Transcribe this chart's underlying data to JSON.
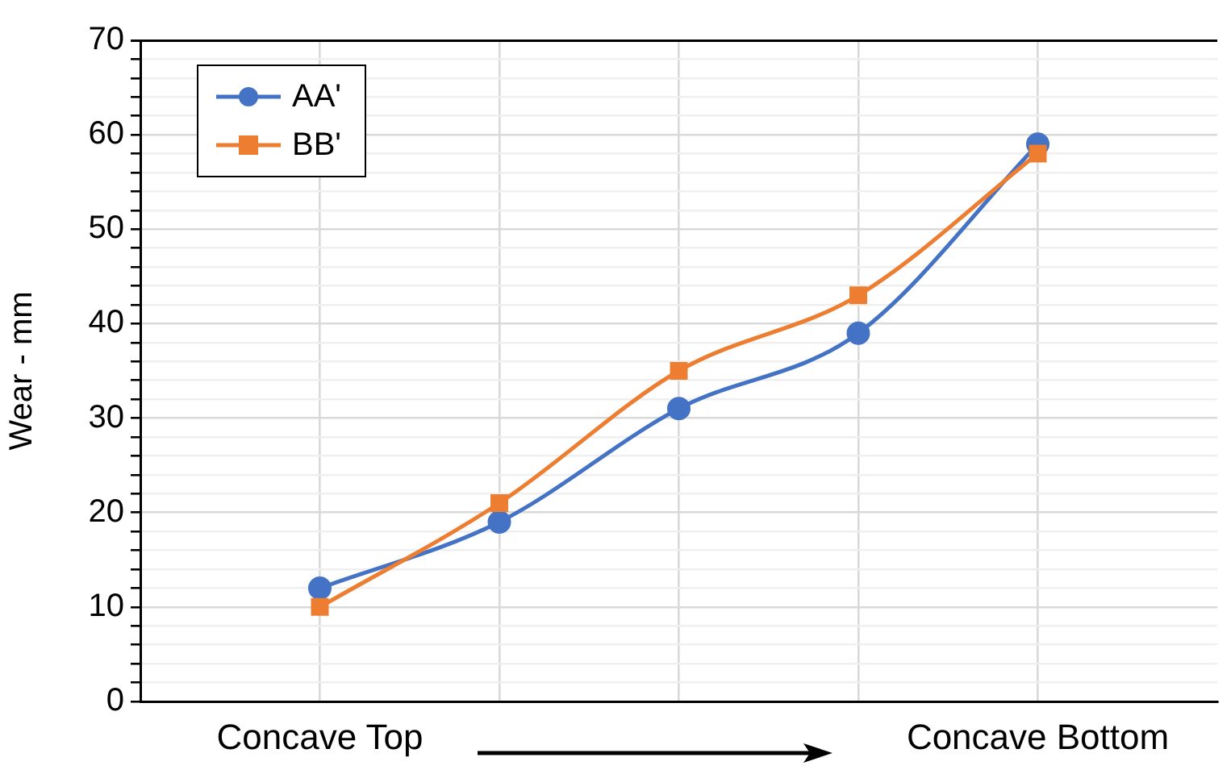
{
  "chart_data": {
    "type": "line",
    "ylabel": "Wear - mm",
    "categories": [
      "Concave Top",
      null,
      null,
      null,
      "Concave Bottom"
    ],
    "series": [
      {
        "name": "AA'",
        "color": "#4472c4",
        "marker": "circle",
        "values": [
          12,
          19,
          31,
          39,
          59
        ]
      },
      {
        "name": "BB'",
        "color": "#ed7d31",
        "marker": "square",
        "values": [
          10,
          21,
          35,
          43,
          58
        ]
      }
    ],
    "ylim": [
      0,
      70
    ],
    "yticks": [
      0,
      {
        "value": 2,
        "label": null
      },
      {
        "value": 4,
        "label": null
      },
      {
        "value": 6,
        "label": null
      },
      {
        "value": 8,
        "label": null
      },
      10,
      {
        "value": 12,
        "label": null
      },
      {
        "value": 14,
        "label": null
      },
      {
        "value": 16,
        "label": null
      },
      {
        "value": 18,
        "label": null
      },
      20,
      {
        "value": 22,
        "label": null
      },
      {
        "value": 24,
        "label": null
      },
      {
        "value": 26,
        "label": null
      },
      {
        "value": 28,
        "label": null
      },
      30,
      {
        "value": 32,
        "label": null
      },
      {
        "value": 34,
        "label": null
      },
      {
        "value": 36,
        "label": null
      },
      {
        "value": 38,
        "label": null
      },
      40,
      {
        "value": 42,
        "label": null
      },
      {
        "value": 44,
        "label": null
      },
      {
        "value": 46,
        "label": null
      },
      {
        "value": 48,
        "label": null
      },
      50,
      {
        "value": 52,
        "label": null
      },
      {
        "value": 54,
        "label": null
      },
      {
        "value": 56,
        "label": null
      },
      {
        "value": 58,
        "label": null
      },
      60,
      {
        "value": 62,
        "label": null
      },
      {
        "value": 64,
        "label": null
      },
      {
        "value": 66,
        "label": null
      },
      {
        "value": 68,
        "label": null
      },
      70
    ],
    "grid": true,
    "legend": "top left",
    "line_style": "solid"
  }
}
